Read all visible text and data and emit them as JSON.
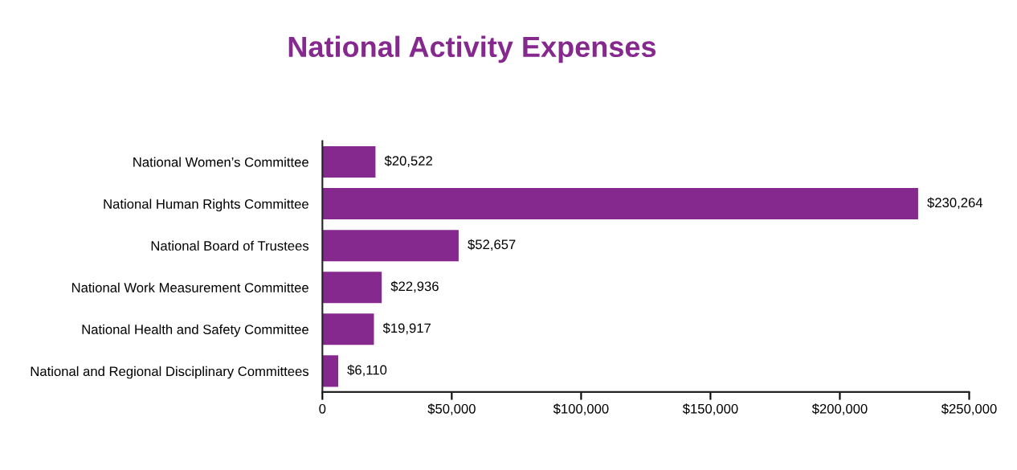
{
  "chart_data": {
    "type": "bar",
    "orientation": "horizontal",
    "title": "National Activity Expenses",
    "categories": [
      "National Women’s Committee",
      "National Human Rights Committee",
      "National Board of Trustees",
      "National Work Measurement Committee",
      "National Health and Safety Committee",
      "National and Regional Disciplinary Committees"
    ],
    "values": [
      20522,
      230264,
      52657,
      22936,
      19917,
      6110
    ],
    "value_labels": [
      "$20,522",
      "$230,264",
      "$52,657",
      "$22,936",
      "$19,917",
      "$6,110"
    ],
    "color": "#86298f",
    "xlim": [
      0,
      250000
    ],
    "xticks": [
      0,
      {
        "value": 50000,
        "label": "$50,000"
      },
      {
        "value": 100000,
        "label": "$100,000"
      },
      {
        "value": 150000,
        "label": "$150,000"
      },
      {
        "value": 200000,
        "label": "$200,000"
      },
      {
        "value": 250000,
        "label": "$250,000"
      }
    ],
    "grid": false
  }
}
